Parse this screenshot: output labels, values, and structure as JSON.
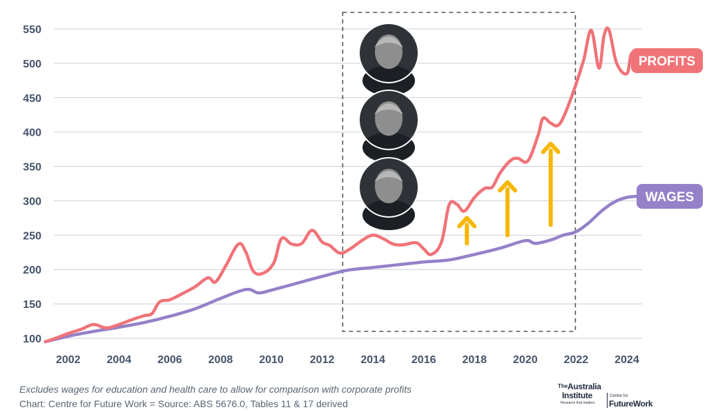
{
  "chart_data": {
    "type": "line",
    "title": "",
    "xlabel": "",
    "ylabel": "",
    "ylim": [
      100,
      550
    ],
    "xlim": [
      2001,
      2024.6
    ],
    "y_ticks": [
      "100",
      "150",
      "200",
      "250",
      "300",
      "350",
      "400",
      "450",
      "500",
      "550"
    ],
    "x_ticks": [
      "2002",
      "2004",
      "2006",
      "2008",
      "2010",
      "2012",
      "2014",
      "2016",
      "2018",
      "2020",
      "2022",
      "2024"
    ],
    "grid": true,
    "series": [
      {
        "name": "PROFITS",
        "color": "#f07378",
        "points": [
          [
            2001.1,
            95
          ],
          [
            2001.5,
            100
          ],
          [
            2002.0,
            107
          ],
          [
            2002.5,
            113
          ],
          [
            2003.0,
            120
          ],
          [
            2003.5,
            115
          ],
          [
            2004.0,
            120
          ],
          [
            2004.5,
            127
          ],
          [
            2005.0,
            133
          ],
          [
            2005.3,
            136
          ],
          [
            2005.6,
            153
          ],
          [
            2006.0,
            156
          ],
          [
            2006.5,
            165
          ],
          [
            2007.0,
            175
          ],
          [
            2007.5,
            188
          ],
          [
            2007.8,
            182
          ],
          [
            2008.2,
            205
          ],
          [
            2008.7,
            237
          ],
          [
            2009.0,
            225
          ],
          [
            2009.3,
            197
          ],
          [
            2009.7,
            195
          ],
          [
            2010.1,
            210
          ],
          [
            2010.4,
            245
          ],
          [
            2010.8,
            237
          ],
          [
            2011.2,
            238
          ],
          [
            2011.6,
            257
          ],
          [
            2012.0,
            240
          ],
          [
            2012.3,
            235
          ],
          [
            2012.7,
            224
          ],
          [
            2013.1,
            230
          ],
          [
            2013.6,
            243
          ],
          [
            2014.0,
            250
          ],
          [
            2014.4,
            245
          ],
          [
            2014.8,
            237
          ],
          [
            2015.2,
            236
          ],
          [
            2015.7,
            239
          ],
          [
            2016.0,
            230
          ],
          [
            2016.3,
            222
          ],
          [
            2016.7,
            240
          ],
          [
            2017.0,
            294
          ],
          [
            2017.3,
            295
          ],
          [
            2017.6,
            285
          ],
          [
            2018.0,
            305
          ],
          [
            2018.4,
            318
          ],
          [
            2018.7,
            320
          ],
          [
            2019.0,
            340
          ],
          [
            2019.4,
            358
          ],
          [
            2019.7,
            362
          ],
          [
            2020.1,
            358
          ],
          [
            2020.5,
            395
          ],
          [
            2020.7,
            420
          ],
          [
            2021.0,
            413
          ],
          [
            2021.3,
            410
          ],
          [
            2021.6,
            430
          ],
          [
            2022.0,
            470
          ],
          [
            2022.3,
            505
          ],
          [
            2022.6,
            548
          ],
          [
            2022.9,
            493
          ],
          [
            2023.1,
            540
          ],
          [
            2023.3,
            548
          ],
          [
            2023.6,
            500
          ],
          [
            2024.0,
            485
          ],
          [
            2024.2,
            515
          ],
          [
            2024.6,
            505
          ]
        ]
      },
      {
        "name": "WAGES",
        "color": "#9481c8",
        "points": [
          [
            2001.1,
            95
          ],
          [
            2002.0,
            103
          ],
          [
            2003.0,
            110
          ],
          [
            2004.0,
            116
          ],
          [
            2005.0,
            123
          ],
          [
            2006.0,
            132
          ],
          [
            2007.0,
            143
          ],
          [
            2008.0,
            158
          ],
          [
            2009.0,
            171
          ],
          [
            2009.5,
            166
          ],
          [
            2010.0,
            170
          ],
          [
            2011.0,
            180
          ],
          [
            2012.0,
            190
          ],
          [
            2013.0,
            199
          ],
          [
            2014.0,
            203
          ],
          [
            2015.0,
            207
          ],
          [
            2016.0,
            211
          ],
          [
            2017.0,
            214
          ],
          [
            2018.0,
            222
          ],
          [
            2019.0,
            231
          ],
          [
            2020.0,
            242
          ],
          [
            2020.4,
            238
          ],
          [
            2021.0,
            243
          ],
          [
            2021.5,
            250
          ],
          [
            2022.0,
            255
          ],
          [
            2022.5,
            268
          ],
          [
            2023.0,
            285
          ],
          [
            2023.5,
            298
          ],
          [
            2024.0,
            305
          ],
          [
            2024.6,
            307
          ]
        ]
      }
    ],
    "annotations": {
      "period_box": {
        "x0": 2013.0,
        "x1": 2022.0,
        "y0": 108,
        "y1": 573
      },
      "arrows": [
        {
          "x": 2017.7,
          "y0": 238,
          "y1": 275
        },
        {
          "x": 2019.3,
          "y0": 250,
          "y1": 327
        },
        {
          "x": 2021.0,
          "y0": 265,
          "y1": 383
        }
      ],
      "portraits": [
        "portrait-1",
        "portrait-2",
        "portrait-3"
      ]
    }
  },
  "labels": {
    "profits": "PROFITS",
    "wages": "WAGES"
  },
  "colors": {
    "profits": "#f07378",
    "wages": "#9481c8",
    "arrow": "#f7b700",
    "text": "#44536a"
  },
  "footer": {
    "note": "Excludes wages for education and health care to allow for comparison with corporate profits",
    "source": "Chart: Centre for Future Work = Source: ABS 5676.0, Tables 11 & 17 derived"
  },
  "logo": {
    "the": "The",
    "name_line1": "Australia",
    "name_line2": "Institute",
    "tagline": "Research that matters.",
    "partner_small": "Centre for",
    "partner_big": "FutureWork"
  }
}
